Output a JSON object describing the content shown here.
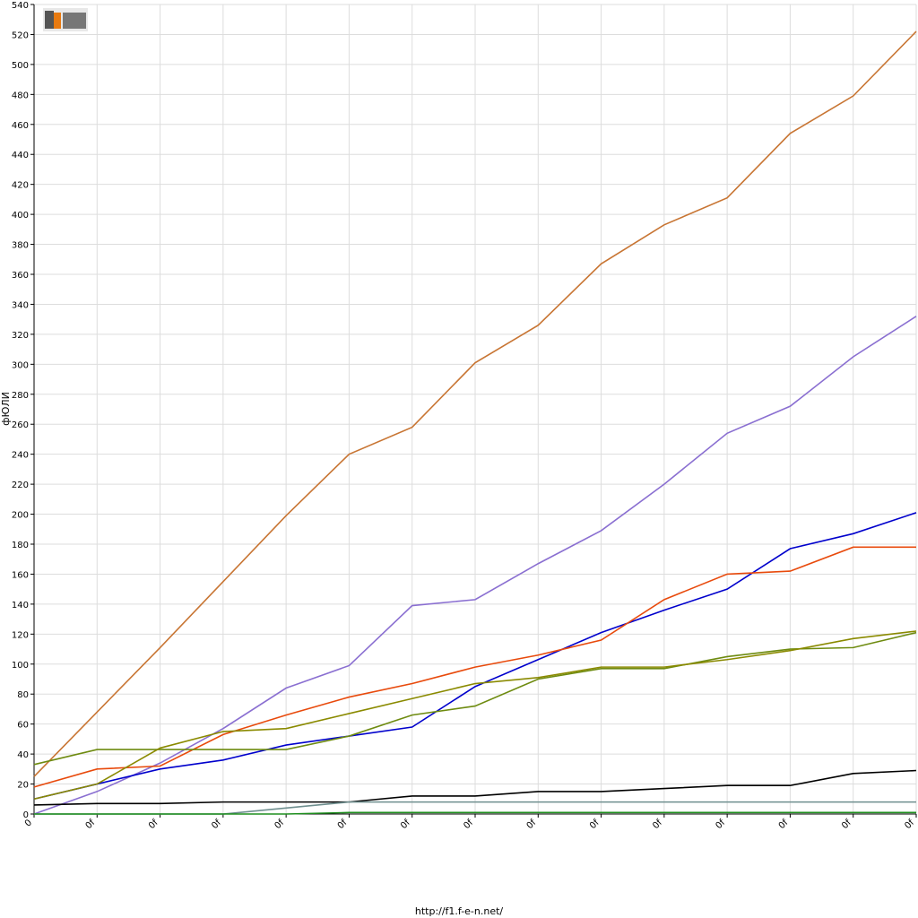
{
  "chart_data": {
    "type": "line",
    "ylabel": "фЮЛИ",
    "footer": "http://f1.f-e-n.net/",
    "categories": [
      "0",
      "0f",
      "0f",
      "0f",
      "0f",
      "0f",
      "0f",
      "0f",
      "0f",
      "0f",
      "0f",
      "0f",
      "0f",
      "0f",
      "0f"
    ],
    "ylim": [
      0,
      540
    ],
    "yticks": [
      0,
      20,
      40,
      60,
      80,
      100,
      120,
      140,
      160,
      180,
      200,
      220,
      240,
      260,
      280,
      300,
      320,
      340,
      360,
      380,
      400,
      420,
      440,
      460,
      480,
      500,
      520,
      540
    ],
    "grid": true,
    "series": [
      {
        "color": "#c87533",
        "values": [
          25,
          68,
          111,
          155,
          199,
          240,
          258,
          301,
          326,
          367,
          393,
          411,
          454,
          479,
          522
        ]
      },
      {
        "color": "#8a6fd1",
        "values": [
          0,
          15,
          34,
          57,
          84,
          99,
          139,
          143,
          167,
          189,
          220,
          254,
          272,
          305,
          332
        ]
      },
      {
        "color": "#0000cc",
        "values": [
          10,
          20,
          30,
          36,
          46,
          52,
          58,
          85,
          103,
          121,
          136,
          150,
          177,
          187,
          201
        ]
      },
      {
        "color": "#e84a0c",
        "values": [
          18,
          30,
          32,
          53,
          66,
          78,
          87,
          98,
          106,
          116,
          143,
          160,
          162,
          178,
          178
        ]
      },
      {
        "color": "#6e8b10",
        "values": [
          33,
          43,
          43,
          43,
          43,
          52,
          66,
          72,
          90,
          97,
          97,
          105,
          110,
          111,
          121
        ]
      },
      {
        "color": "#8a8a00",
        "values": [
          10,
          20,
          44,
          55,
          57,
          67,
          77,
          87,
          91,
          98,
          98,
          103,
          109,
          117,
          122
        ]
      },
      {
        "color": "#000000",
        "values": [
          6,
          7,
          7,
          8,
          8,
          8,
          12,
          12,
          15,
          15,
          17,
          19,
          19,
          27,
          29
        ]
      },
      {
        "color": "#6f8f8f",
        "values": [
          0,
          0,
          0,
          0,
          4,
          8,
          8,
          8,
          8,
          8,
          8,
          8,
          8,
          8,
          8
        ]
      },
      {
        "color": "#1f8f1f",
        "values": [
          0,
          0,
          0,
          0,
          0,
          1,
          1,
          1,
          1,
          1,
          1,
          1,
          1,
          1,
          1
        ]
      }
    ]
  }
}
